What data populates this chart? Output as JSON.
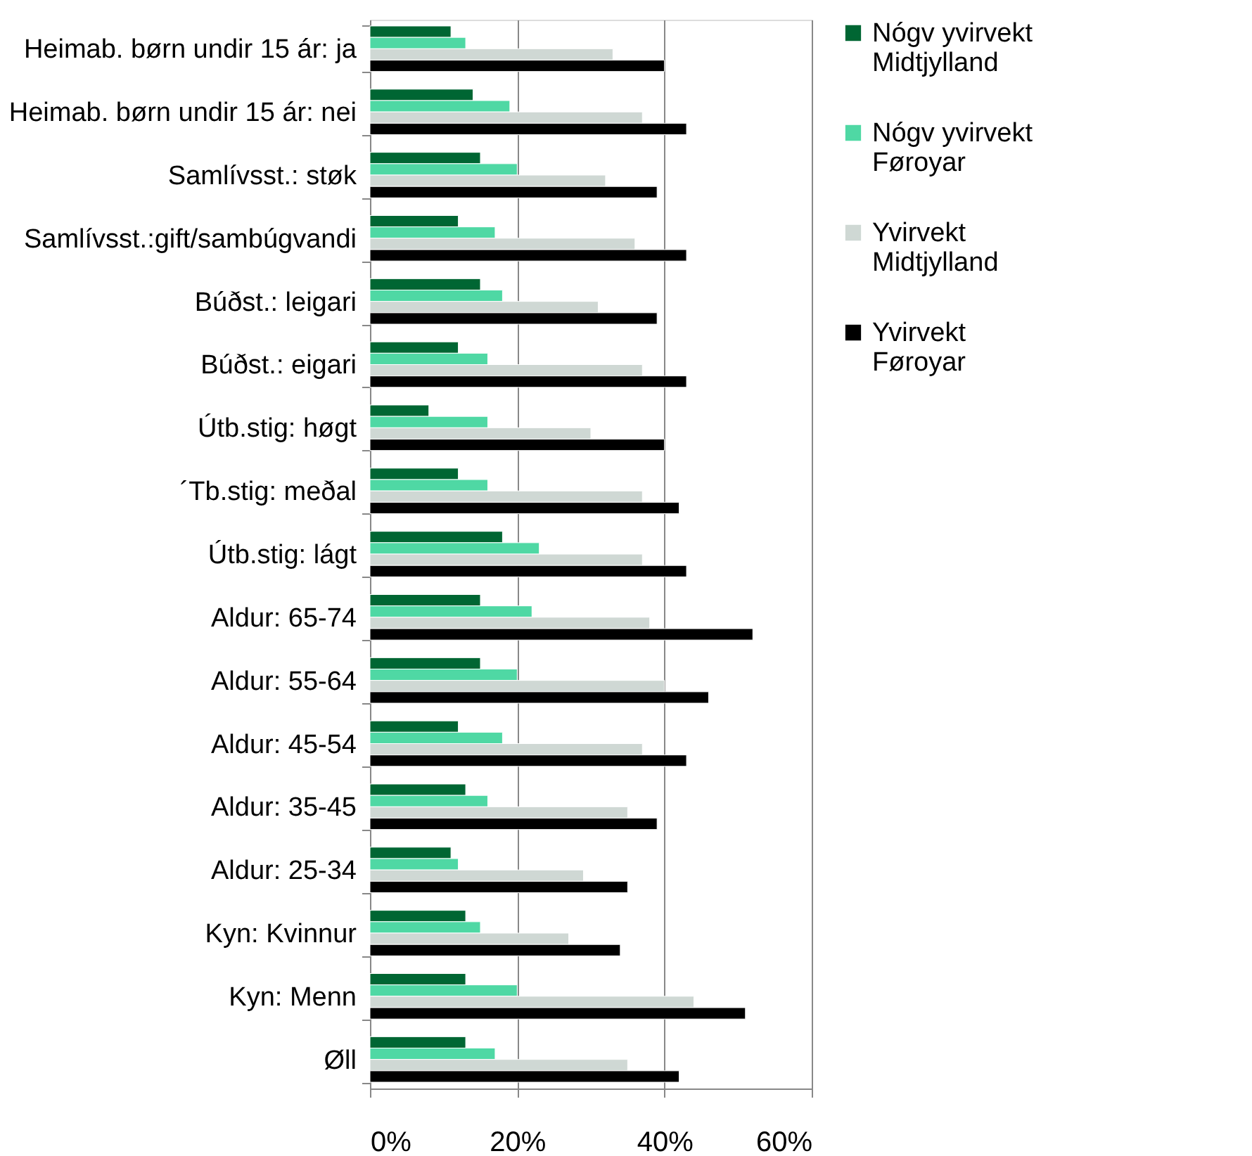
{
  "chart_data": {
    "type": "bar",
    "orientation": "horizontal",
    "categories": [
      "Heimab. børn undir 15 ár: ja",
      "Heimab. børn undir 15 ár: nei",
      "Samlívsst.: støk",
      "Samlívsst.:gift/sambúgvandi",
      "Búðst.: leigari",
      "Búðst.: eigari",
      "Útb.stig: høgt",
      "´Tb.stig: meðal",
      "Útb.stig: lágt",
      "Aldur: 65-74",
      "Aldur: 55-64",
      "Aldur: 45-54",
      "Aldur: 35-45",
      "Aldur: 25-34",
      "Kyn: Kvinnur",
      "Kyn: Menn",
      "Øll"
    ],
    "series": [
      {
        "name": "Nógv yvirvekt Midtjylland",
        "color": "#006633",
        "values": [
          11,
          14,
          15,
          12,
          15,
          12,
          8,
          12,
          18,
          15,
          15,
          12,
          13,
          11,
          13,
          13,
          13
        ]
      },
      {
        "name": "Nógv yvirvekt Føroyar",
        "color": "#4fd8a4",
        "values": [
          13,
          19,
          20,
          17,
          18,
          16,
          16,
          16,
          23,
          22,
          20,
          18,
          16,
          12,
          15,
          20,
          17
        ]
      },
      {
        "name": "Yvirvekt Midtjylland",
        "color": "#cfd8d4",
        "values": [
          33,
          37,
          32,
          36,
          31,
          37,
          30,
          37,
          37,
          38,
          40,
          37,
          35,
          29,
          27,
          44,
          35
        ]
      },
      {
        "name": "Yvirvekt Føroyar",
        "color": "#000000",
        "values": [
          40,
          43,
          39,
          43,
          39,
          43,
          40,
          42,
          43,
          52,
          46,
          43,
          39,
          35,
          34,
          51,
          42
        ]
      }
    ],
    "xlim": [
      0,
      60
    ],
    "xticks": [
      {
        "value": 0,
        "label": "0%"
      },
      {
        "value": 20,
        "label": "20%"
      },
      {
        "value": 40,
        "label": "40%"
      },
      {
        "value": 60,
        "label": "60%"
      }
    ],
    "grid": "x",
    "legend": "right"
  }
}
